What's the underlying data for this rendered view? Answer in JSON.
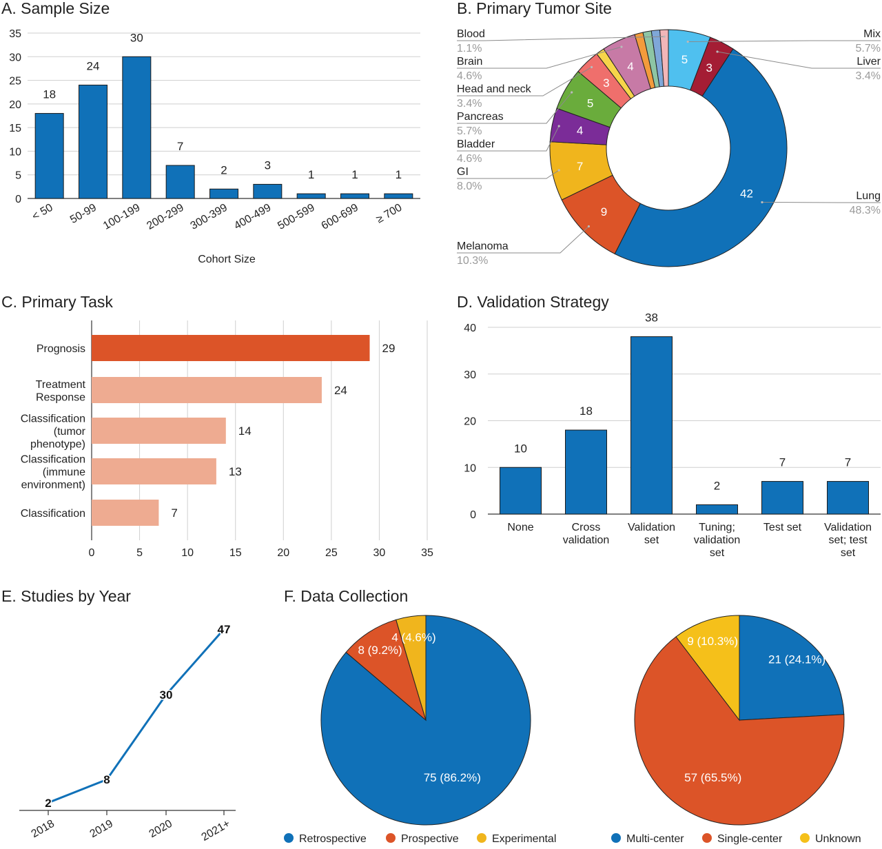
{
  "colors": {
    "blue": "#1071b8",
    "orange": "#dc5428",
    "salmon": "#eeab91",
    "yellow": "#f0b51d",
    "red": "#a41d34",
    "sky": "#4fc0ef",
    "green": "#6aac3c",
    "purple": "#7b2c98",
    "gray_label": "#9a9a9a"
  },
  "panels": {
    "a": {
      "title": "A. Sample Size"
    },
    "b": {
      "title": "B. Primary Tumor Site"
    },
    "c": {
      "title": "C. Primary Task"
    },
    "d": {
      "title": "D. Validation Strategy"
    },
    "e": {
      "title": "E. Studies by Year"
    },
    "f": {
      "title": "F. Data Collection"
    }
  },
  "chart_data": [
    {
      "id": "A",
      "type": "bar",
      "title": "A. Sample Size",
      "xlabel": "Cohort Size",
      "ylabel": "",
      "categories": [
        "< 50",
        "50-99",
        "100-199",
        "200-299",
        "300-399",
        "400-499",
        "500-599",
        "600-699",
        "≥ 700"
      ],
      "values": [
        18,
        24,
        30,
        7,
        2,
        3,
        1,
        1,
        1
      ],
      "ylim": [
        0,
        35
      ],
      "yticks": [
        0,
        5,
        10,
        15,
        20,
        25,
        30,
        35
      ],
      "grid": true
    },
    {
      "id": "B",
      "type": "pie",
      "title": "B. Primary Tumor Site",
      "donut": true,
      "slices": [
        {
          "name": "Mix",
          "value": 5,
          "label": "5",
          "pct": "5.7%",
          "color": "#4fc0ef"
        },
        {
          "name": "Liver",
          "value": 3,
          "label": "3",
          "pct": "3.4%",
          "color": "#a41d34"
        },
        {
          "name": "Lung",
          "value": 42,
          "label": "42",
          "pct": "48.3%",
          "color": "#1071b8"
        },
        {
          "name": "Melanoma",
          "value": 9,
          "label": "9",
          "pct": "10.3%",
          "color": "#dc5428"
        },
        {
          "name": "GI",
          "value": 7,
          "label": "7",
          "pct": "8.0%",
          "color": "#f0b51d"
        },
        {
          "name": "Bladder",
          "value": 4,
          "label": "4",
          "pct": "4.6%",
          "color": "#7b2c98"
        },
        {
          "name": "Pancreas",
          "value": 5,
          "label": "5",
          "pct": "5.7%",
          "color": "#6aac3c"
        },
        {
          "name": "Head and neck",
          "value": 3,
          "label": "3",
          "pct": "3.4%",
          "color": "#ef6f6c"
        },
        {
          "name": "",
          "value": 1,
          "label": "",
          "pct": "",
          "color": "#f6d54a"
        },
        {
          "name": "Brain",
          "value": 4,
          "label": "4",
          "pct": "4.6%",
          "color": "#c77aa6"
        },
        {
          "name": "",
          "value": 1,
          "label": "",
          "pct": "",
          "color": "#f39b3c"
        },
        {
          "name": "",
          "value": 1,
          "label": "",
          "pct": "",
          "color": "#8dc5a4"
        },
        {
          "name": "",
          "value": 1,
          "label": "",
          "pct": "",
          "color": "#7fa7d8"
        },
        {
          "name": "Blood",
          "value": 1,
          "label": "",
          "pct": "1.1%",
          "color": "#f2b6b8"
        }
      ],
      "legend_left": [
        {
          "name": "Blood",
          "pct": "1.1%"
        },
        {
          "name": "Brain",
          "pct": "4.6%"
        },
        {
          "name": "Head and neck",
          "pct": "3.4%"
        },
        {
          "name": "Pancreas",
          "pct": "5.7%"
        },
        {
          "name": "Bladder",
          "pct": "4.6%"
        },
        {
          "name": "GI",
          "pct": "8.0%"
        },
        {
          "name": "Melanoma",
          "pct": "10.3%"
        }
      ],
      "legend_right": [
        {
          "name": "Mix",
          "pct": "5.7%"
        },
        {
          "name": "Liver",
          "pct": "3.4%"
        },
        {
          "name": "Lung",
          "pct": "48.3%"
        }
      ]
    },
    {
      "id": "C",
      "type": "bar",
      "orientation": "horizontal",
      "title": "C. Primary Task",
      "categories": [
        [
          "Prognosis"
        ],
        [
          "Treatment",
          "Response"
        ],
        [
          "Classification",
          "(tumor",
          "phenotype)"
        ],
        [
          "Classification",
          "(immune",
          "environment)"
        ],
        [
          "Classification"
        ]
      ],
      "values": [
        29,
        24,
        14,
        13,
        7
      ],
      "highlight": [
        true,
        false,
        false,
        false,
        false
      ],
      "xlim": [
        0,
        35
      ],
      "xticks": [
        0,
        5,
        10,
        15,
        20,
        25,
        30,
        35
      ],
      "grid": true
    },
    {
      "id": "D",
      "type": "bar",
      "title": "D. Validation Strategy",
      "categories": [
        [
          "None"
        ],
        [
          "Cross",
          "validation"
        ],
        [
          "Validation",
          "set"
        ],
        [
          "Tuning;",
          "validation",
          "set"
        ],
        [
          "Test set"
        ],
        [
          "Validation",
          "set; test",
          "set"
        ]
      ],
      "values": [
        10,
        18,
        38,
        2,
        7,
        7
      ],
      "ylim": [
        0,
        40
      ],
      "yticks": [
        0,
        10,
        20,
        30,
        40
      ],
      "grid": true
    },
    {
      "id": "E",
      "type": "line",
      "title": "E. Studies by Year",
      "x": [
        "2018",
        "2019",
        "2020",
        "2021+"
      ],
      "values": [
        2,
        8,
        30,
        47
      ],
      "grid": false
    },
    {
      "id": "F1",
      "type": "pie",
      "title": "F. Data Collection",
      "slices": [
        {
          "name": "Retrospective",
          "value": 75,
          "label": "75 (86.2%)",
          "color": "#1071b8"
        },
        {
          "name": "Prospective",
          "value": 8,
          "label": "8 (9.2%)",
          "color": "#dc5428"
        },
        {
          "name": "Experimental",
          "value": 4,
          "label": "4 (4.6%)",
          "color": "#f0b51d"
        }
      ],
      "legend": [
        "Retrospective",
        "Prospective",
        "Experimental"
      ],
      "legend_position": "bottom"
    },
    {
      "id": "F2",
      "type": "pie",
      "slices": [
        {
          "name": "Multi-center",
          "value": 21,
          "label": "21 (24.1%)",
          "color": "#1071b8"
        },
        {
          "name": "Single-center",
          "value": 57,
          "label": "57 (65.5%)",
          "color": "#dc5428"
        },
        {
          "name": "Unknown",
          "value": 9,
          "label": "9 (10.3%)",
          "color": "#f5c01a"
        }
      ],
      "legend": [
        "Multi-center",
        "Single-center",
        "Unknown"
      ],
      "legend_position": "bottom"
    }
  ]
}
